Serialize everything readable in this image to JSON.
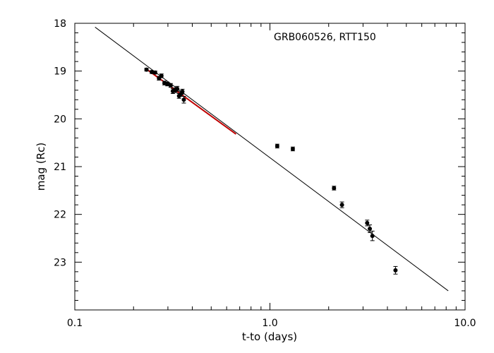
{
  "chart_data": {
    "type": "scatter",
    "title": "",
    "annotation": "GRB060526, RTT150",
    "xlabel": "t-to (days)",
    "ylabel": "mag (Rc)",
    "xscale": "log",
    "xlim": [
      0.1,
      10.0
    ],
    "ylim": [
      24.0,
      18.0
    ],
    "y_inverted": true,
    "grid": false,
    "x_ticks": [
      0.1,
      1.0,
      10.0
    ],
    "x_tick_labels": [
      "0.1",
      "1.0",
      "10.0"
    ],
    "y_ticks": [
      18,
      19,
      20,
      21,
      22,
      23
    ],
    "y_tick_labels": [
      "18",
      "19",
      "20",
      "21",
      "22",
      "23"
    ],
    "series": [
      {
        "type": "scatter",
        "color": "#000000",
        "points": [
          {
            "x": 0.233,
            "y": 18.97,
            "err": 0.03
          },
          {
            "x": 0.248,
            "y": 19.02,
            "err": 0.03
          },
          {
            "x": 0.258,
            "y": 19.03,
            "err": 0.03
          },
          {
            "x": 0.27,
            "y": 19.15,
            "err": 0.04
          },
          {
            "x": 0.278,
            "y": 19.1,
            "err": 0.04
          },
          {
            "x": 0.288,
            "y": 19.25,
            "err": 0.04
          },
          {
            "x": 0.298,
            "y": 19.27,
            "err": 0.04
          },
          {
            "x": 0.31,
            "y": 19.3,
            "err": 0.04
          },
          {
            "x": 0.318,
            "y": 19.42,
            "err": 0.05
          },
          {
            "x": 0.328,
            "y": 19.4,
            "err": 0.05
          },
          {
            "x": 0.335,
            "y": 19.37,
            "err": 0.05
          },
          {
            "x": 0.342,
            "y": 19.52,
            "err": 0.05
          },
          {
            "x": 0.35,
            "y": 19.48,
            "err": 0.05
          },
          {
            "x": 0.356,
            "y": 19.43,
            "err": 0.05
          },
          {
            "x": 0.362,
            "y": 19.6,
            "err": 0.07
          },
          {
            "x": 1.09,
            "y": 20.57,
            "err": 0.04
          },
          {
            "x": 1.31,
            "y": 20.63,
            "err": 0.04
          },
          {
            "x": 2.13,
            "y": 21.45,
            "err": 0.04
          },
          {
            "x": 2.34,
            "y": 21.8,
            "err": 0.06
          },
          {
            "x": 3.15,
            "y": 22.18,
            "err": 0.06
          },
          {
            "x": 3.25,
            "y": 22.3,
            "err": 0.08
          },
          {
            "x": 3.35,
            "y": 22.45,
            "err": 0.1
          },
          {
            "x": 4.4,
            "y": 23.17,
            "err": 0.08
          }
        ]
      },
      {
        "type": "line",
        "color": "#000000",
        "points": [
          [
            0.127,
            18.08
          ],
          [
            8.2,
            23.6
          ]
        ]
      },
      {
        "type": "line",
        "color": "#c00000",
        "points": [
          [
            0.235,
            18.97
          ],
          [
            0.67,
            20.32
          ]
        ]
      }
    ]
  }
}
